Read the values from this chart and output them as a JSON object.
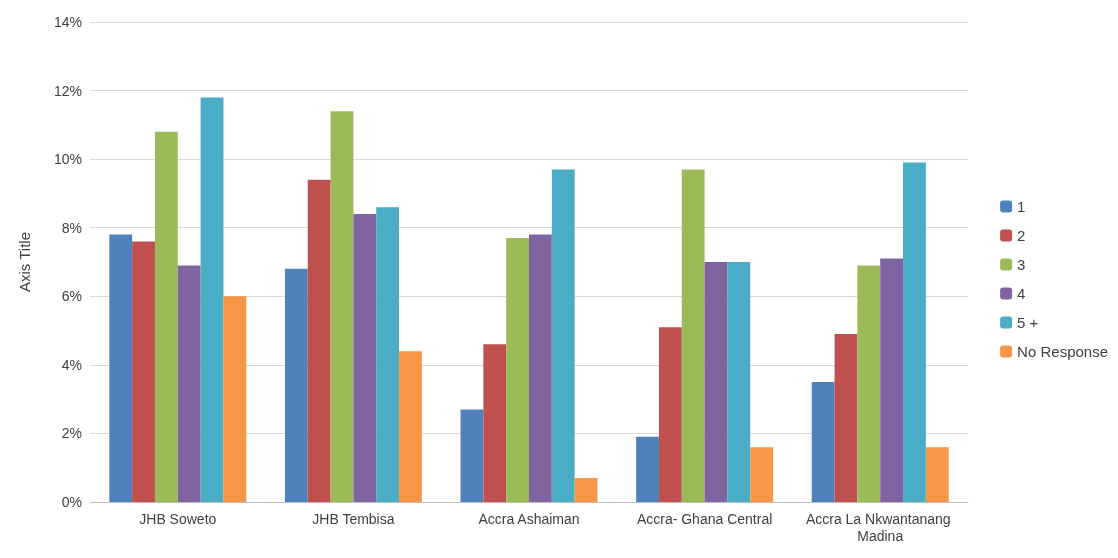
{
  "chart_data": {
    "type": "bar",
    "ylabel": "Axis Title",
    "categories": [
      "JHB Soweto",
      "JHB Tembisa",
      "Accra Ashaiman",
      "Accra- Ghana Central",
      "Accra La Nkwantanang Madina"
    ],
    "series": [
      {
        "name": "1",
        "color": "#4f81bd",
        "values": [
          7.8,
          6.8,
          2.7,
          1.9,
          3.5
        ]
      },
      {
        "name": "2",
        "color": "#c0504d",
        "values": [
          7.6,
          9.4,
          4.6,
          5.1,
          4.9
        ]
      },
      {
        "name": "3",
        "color": "#9bbb59",
        "values": [
          10.8,
          11.4,
          7.7,
          9.7,
          6.9
        ]
      },
      {
        "name": "4",
        "color": "#8064a2",
        "values": [
          6.9,
          8.4,
          7.8,
          7.0,
          7.1
        ]
      },
      {
        "name": "5 +",
        "color": "#4bacc6",
        "values": [
          11.8,
          8.6,
          9.7,
          7.0,
          9.9
        ]
      },
      {
        "name": "No Response",
        "color": "#f79646",
        "values": [
          6.0,
          4.4,
          0.7,
          1.6,
          1.6
        ]
      }
    ],
    "ylim": [
      0,
      14
    ],
    "yticks": [
      {
        "value": 0,
        "label": "0%"
      },
      {
        "value": 2,
        "label": "2%"
      },
      {
        "value": 4,
        "label": "4%"
      },
      {
        "value": 6,
        "label": "6%"
      },
      {
        "value": 8,
        "label": "8%"
      },
      {
        "value": 10,
        "label": "10%"
      },
      {
        "value": 12,
        "label": "12%"
      },
      {
        "value": 14,
        "label": "14%"
      }
    ],
    "grid": "y",
    "legend": "right"
  }
}
